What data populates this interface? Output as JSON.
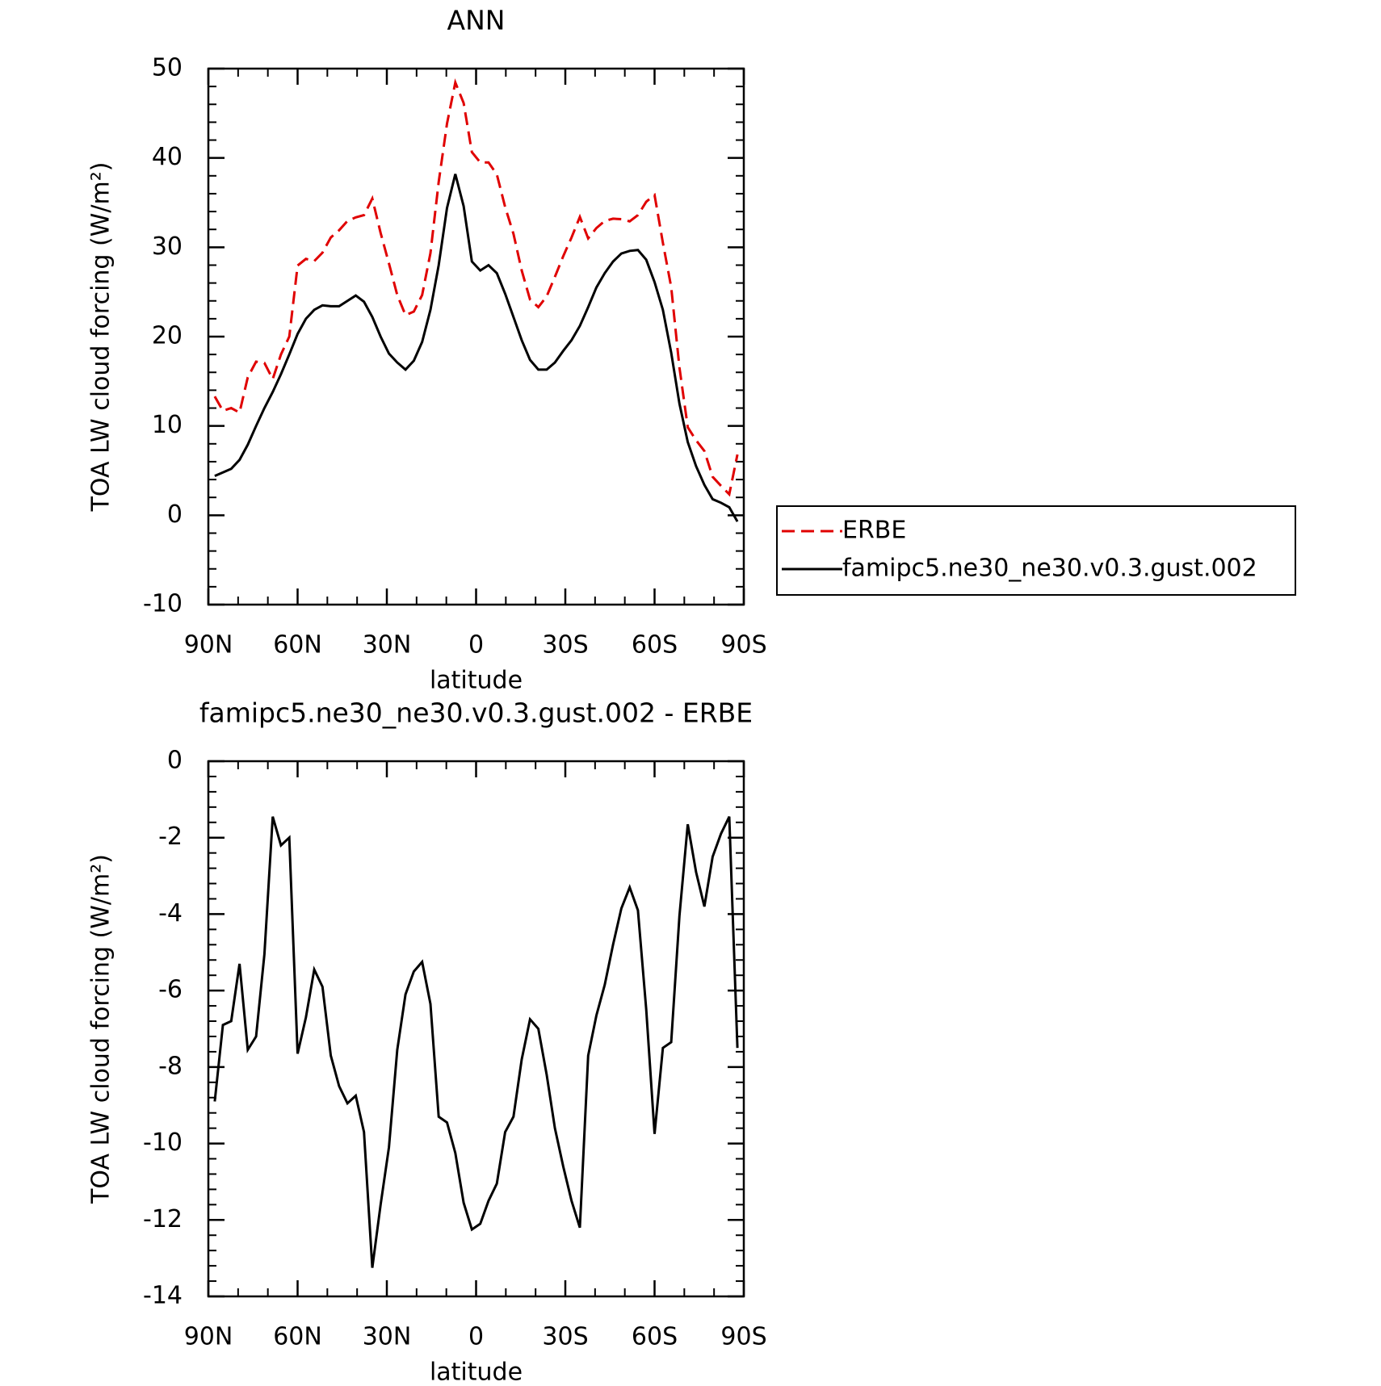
{
  "chart_data": [
    {
      "type": "line",
      "title": "ANN",
      "x_label": "latitude",
      "y_label": "TOA LW cloud forcing (W/m²)",
      "x": [
        87.86,
        85.1,
        82.31,
        79.53,
        76.74,
        73.95,
        71.16,
        68.37,
        65.58,
        62.79,
        60.0,
        57.21,
        54.42,
        51.63,
        48.84,
        46.04,
        43.25,
        40.46,
        37.67,
        34.88,
        32.09,
        29.3,
        26.51,
        23.72,
        20.93,
        18.14,
        15.35,
        12.56,
        9.77,
        6.98,
        4.19,
        1.4,
        -1.4,
        -4.19,
        -6.98,
        -9.77,
        -12.56,
        -15.35,
        -18.14,
        -20.93,
        -23.72,
        -26.51,
        -29.3,
        -32.09,
        -34.88,
        -37.67,
        -40.46,
        -43.25,
        -46.04,
        -48.84,
        -51.63,
        -54.42,
        -57.21,
        -60.0,
        -62.79,
        -65.58,
        -68.37,
        -71.16,
        -73.95,
        -76.74,
        -79.53,
        -82.31,
        -85.1,
        -87.86
      ],
      "series": [
        {
          "name": "ERBE",
          "color": "#e00000",
          "line_style": "dashed",
          "values": [
            13.3,
            11.7,
            12.0,
            11.5,
            15.45,
            17.2,
            17.05,
            15.25,
            18.0,
            20.0,
            27.95,
            28.7,
            28.45,
            29.4,
            31.1,
            31.9,
            32.95,
            33.35,
            33.6,
            35.45,
            31.6,
            28.2,
            24.65,
            22.4,
            22.8,
            24.65,
            29.35,
            37.3,
            43.85,
            48.45,
            46.15,
            40.65,
            39.5,
            39.5,
            38.15,
            34.5,
            31.5,
            27.4,
            24.15,
            23.3,
            24.5,
            26.7,
            29.0,
            31.1,
            33.4,
            31.0,
            32.15,
            32.95,
            33.2,
            33.15,
            32.9,
            33.6,
            35.1,
            35.85,
            30.5,
            25.55,
            16.55,
            9.85,
            8.4,
            7.2,
            4.3,
            3.3,
            2.35,
            6.8
          ]
        },
        {
          "name": "famipc5.ne30_ne30.v0.3.gust.002",
          "color": "#000000",
          "line_style": "solid",
          "values": [
            4.4,
            4.8,
            5.2,
            6.2,
            7.9,
            10.0,
            12.0,
            13.8,
            15.8,
            18.0,
            20.3,
            22.0,
            23.0,
            23.5,
            23.4,
            23.4,
            24.0,
            24.6,
            23.9,
            22.2,
            20.0,
            18.1,
            17.1,
            16.3,
            17.3,
            19.4,
            23.0,
            28.0,
            34.4,
            38.2,
            34.6,
            28.4,
            27.4,
            28.0,
            27.1,
            24.8,
            22.2,
            19.6,
            17.4,
            16.3,
            16.3,
            17.1,
            18.4,
            19.6,
            21.2,
            23.3,
            25.5,
            27.1,
            28.4,
            29.3,
            29.6,
            29.7,
            28.6,
            26.1,
            23.0,
            18.2,
            12.5,
            8.2,
            5.5,
            3.4,
            1.8,
            1.4,
            0.9,
            -0.7
          ]
        }
      ],
      "xlim": [
        90,
        -90
      ],
      "xticks": [
        {
          "value": 90,
          "label": "90N"
        },
        {
          "value": 60,
          "label": "60N"
        },
        {
          "value": 30,
          "label": "30N"
        },
        0,
        {
          "value": -30,
          "label": "30S"
        },
        {
          "value": -60,
          "label": "60S"
        },
        {
          "value": -90,
          "label": "90S"
        }
      ],
      "ylim": [
        -10,
        50
      ],
      "yticks": [
        -10,
        0,
        10,
        20,
        30,
        40,
        50
      ],
      "legend": "right"
    },
    {
      "type": "line",
      "title": "famipc5.ne30_ne30.v0.3.gust.002 - ERBE",
      "x_label": "latitude",
      "y_label": "TOA LW cloud forcing (W/m²)",
      "x": [
        87.86,
        85.1,
        82.31,
        79.53,
        76.74,
        73.95,
        71.16,
        68.37,
        65.58,
        62.79,
        60.0,
        57.21,
        54.42,
        51.63,
        48.84,
        46.04,
        43.25,
        40.46,
        37.67,
        34.88,
        32.09,
        29.3,
        26.51,
        23.72,
        20.93,
        18.14,
        15.35,
        12.56,
        9.77,
        6.98,
        4.19,
        1.4,
        -1.4,
        -4.19,
        -6.98,
        -9.77,
        -12.56,
        -15.35,
        -18.14,
        -20.93,
        -23.72,
        -26.51,
        -29.3,
        -32.09,
        -34.88,
        -37.67,
        -40.46,
        -43.25,
        -46.04,
        -48.84,
        -51.63,
        -54.42,
        -57.21,
        -60.0,
        -62.79,
        -65.58,
        -68.37,
        -71.16,
        -73.95,
        -76.74,
        -79.53,
        -82.31,
        -85.1,
        -87.86
      ],
      "values": [
        -8.9,
        -6.9,
        -6.8,
        -5.3,
        -7.55,
        -7.2,
        -5.05,
        -1.45,
        -2.2,
        -2.0,
        -7.65,
        -6.7,
        -5.45,
        -5.9,
        -7.7,
        -8.5,
        -8.95,
        -8.75,
        -9.7,
        -13.25,
        -11.6,
        -10.1,
        -7.55,
        -6.1,
        -5.5,
        -5.25,
        -6.35,
        -9.3,
        -9.45,
        -10.25,
        -11.55,
        -12.25,
        -12.1,
        -11.5,
        -11.05,
        -9.7,
        -9.3,
        -7.8,
        -6.75,
        -7.0,
        -8.2,
        -9.6,
        -10.6,
        -11.5,
        -12.2,
        -7.7,
        -6.65,
        -5.85,
        -4.8,
        -3.85,
        -3.3,
        -3.9,
        -6.5,
        -9.75,
        -7.5,
        -7.35,
        -4.05,
        -1.65,
        -2.9,
        -3.8,
        -2.5,
        -1.9,
        -1.45,
        -7.5
      ],
      "color": "#000000",
      "line_style": "solid",
      "xlim": [
        90,
        -90
      ],
      "xticks": [
        {
          "value": 90,
          "label": "90N"
        },
        {
          "value": 60,
          "label": "60N"
        },
        {
          "value": 30,
          "label": "30N"
        },
        0,
        {
          "value": -30,
          "label": "30S"
        },
        {
          "value": -60,
          "label": "60S"
        },
        {
          "value": -90,
          "label": "90S"
        }
      ],
      "ylim": [
        -14,
        0
      ],
      "yticks": [
        -14,
        -12,
        -10,
        -8,
        -6,
        -4,
        -2,
        0
      ]
    }
  ]
}
